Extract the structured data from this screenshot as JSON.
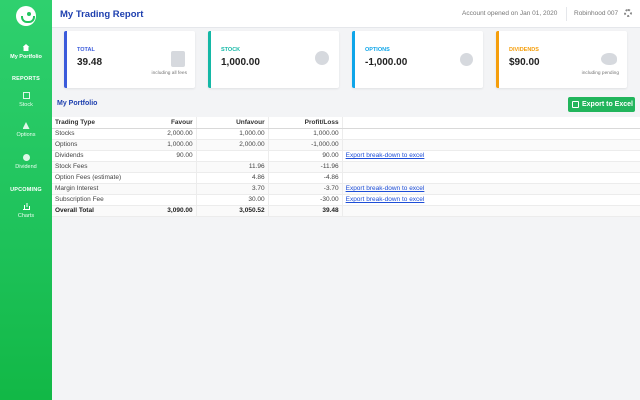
{
  "topbar": {
    "title": "My Trading Report",
    "account": "Account opened on Jan 01, 2020",
    "user": "Robinhood 007"
  },
  "sidebar": {
    "my_portfolio": "My Portfolio",
    "reports_heading": "REPORTS",
    "stock": "Stock",
    "options": "Options",
    "dividend": "Dividend",
    "upcoming_heading": "UPCOMING",
    "charts": "Charts"
  },
  "cards": [
    {
      "label": "TOTAL",
      "value": "39.48",
      "sub": "including all fees",
      "color": "#3b5bdb",
      "icon": "clipboard-icon"
    },
    {
      "label": "STOCK",
      "value": "1,000.00",
      "sub": "",
      "color": "#14b8a6",
      "icon": "search-dollar-icon"
    },
    {
      "label": "OPTIONS",
      "value": "-1,000.00",
      "sub": "",
      "color": "#0ea5e9",
      "icon": "bomb-icon"
    },
    {
      "label": "DIVIDENDS",
      "value": "$90.00",
      "sub": "including pending",
      "color": "#f59e0b",
      "icon": "piggy-bank-icon"
    }
  ],
  "portfolio": {
    "title": "My Portfolio",
    "export_label": "Export to Excel",
    "columns": [
      "Trading Type",
      "Favour",
      "Unfavour",
      "Profit/Loss"
    ],
    "rows": [
      {
        "type": "Stocks",
        "favour": "2,000.00",
        "unfavour": "1,000.00",
        "pl": "1,000.00",
        "link": ""
      },
      {
        "type": "Options",
        "favour": "1,000.00",
        "unfavour": "2,000.00",
        "pl": "-1,000.00",
        "link": ""
      },
      {
        "type": "Dividends",
        "favour": "90.00",
        "unfavour": "",
        "pl": "90.00",
        "link": "Export break-down to excel"
      },
      {
        "type": "Stock Fees",
        "favour": "",
        "unfavour": "11.96",
        "pl": "-11.96",
        "link": ""
      },
      {
        "type": "Option Fees (estimate)",
        "favour": "",
        "unfavour": "4.86",
        "pl": "-4.86",
        "link": ""
      },
      {
        "type": "Margin Interest",
        "favour": "",
        "unfavour": "3.70",
        "pl": "-3.70",
        "link": "Export break-down to excel"
      },
      {
        "type": "Subscription Fee",
        "favour": "",
        "unfavour": "30.00",
        "pl": "-30.00",
        "link": "Export break-down to excel"
      }
    ],
    "total": {
      "type": "Overall Total",
      "favour": "3,090.00",
      "unfavour": "3,050.52",
      "pl": "39.48"
    }
  }
}
